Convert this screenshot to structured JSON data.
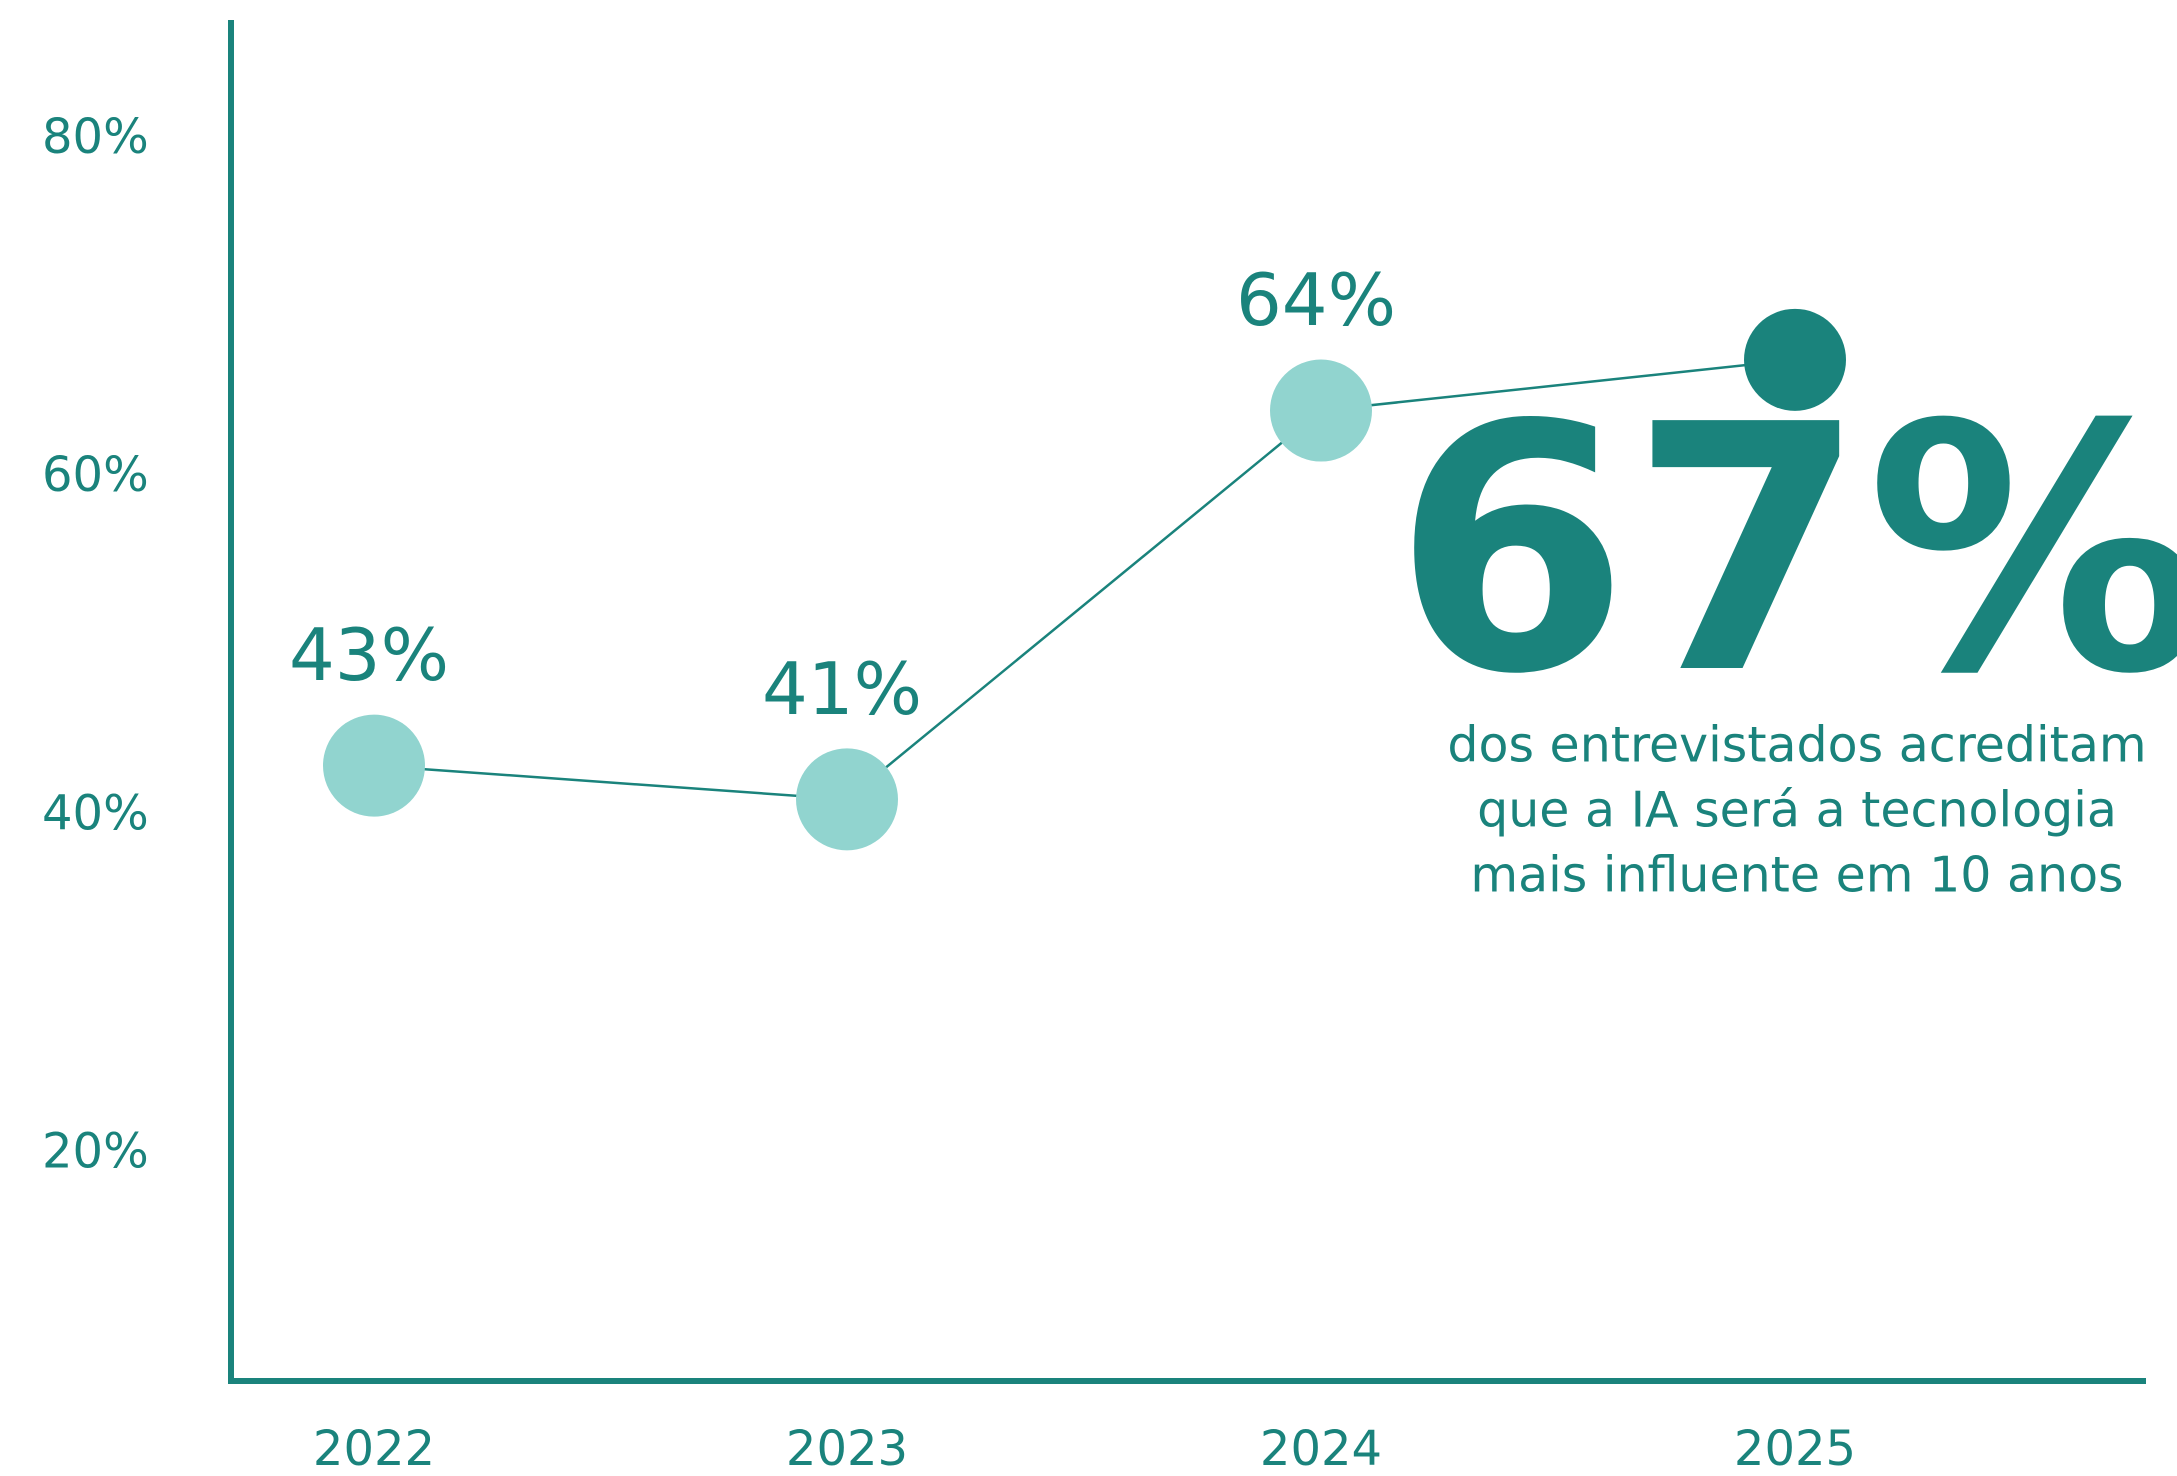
{
  "chart_data": {
    "type": "line",
    "categories": [
      "2022",
      "2023",
      "2024",
      "2025"
    ],
    "series": [
      {
        "color": "#1a837c",
        "values": [
          43,
          41,
          64,
          67
        ],
        "value_labels": [
          "43%",
          "41%",
          "64%",
          "67%"
        ],
        "point_colors": [
          "#91d4cf",
          "#91d4cf",
          "#91d4cf",
          "#1a837c"
        ]
      }
    ],
    "ylim": [
      6.6,
      87.1
    ],
    "yticks": [
      {
        "value": 20,
        "label": "20%"
      },
      {
        "value": 40,
        "label": "40%"
      },
      {
        "value": 60,
        "label": "60%"
      },
      {
        "value": 80,
        "label": "80%"
      }
    ],
    "annotation": [
      "dos entrevistados acreditam",
      "que a IA será a tecnologia",
      "mais influente em 10 anos"
    ],
    "grid": false
  }
}
